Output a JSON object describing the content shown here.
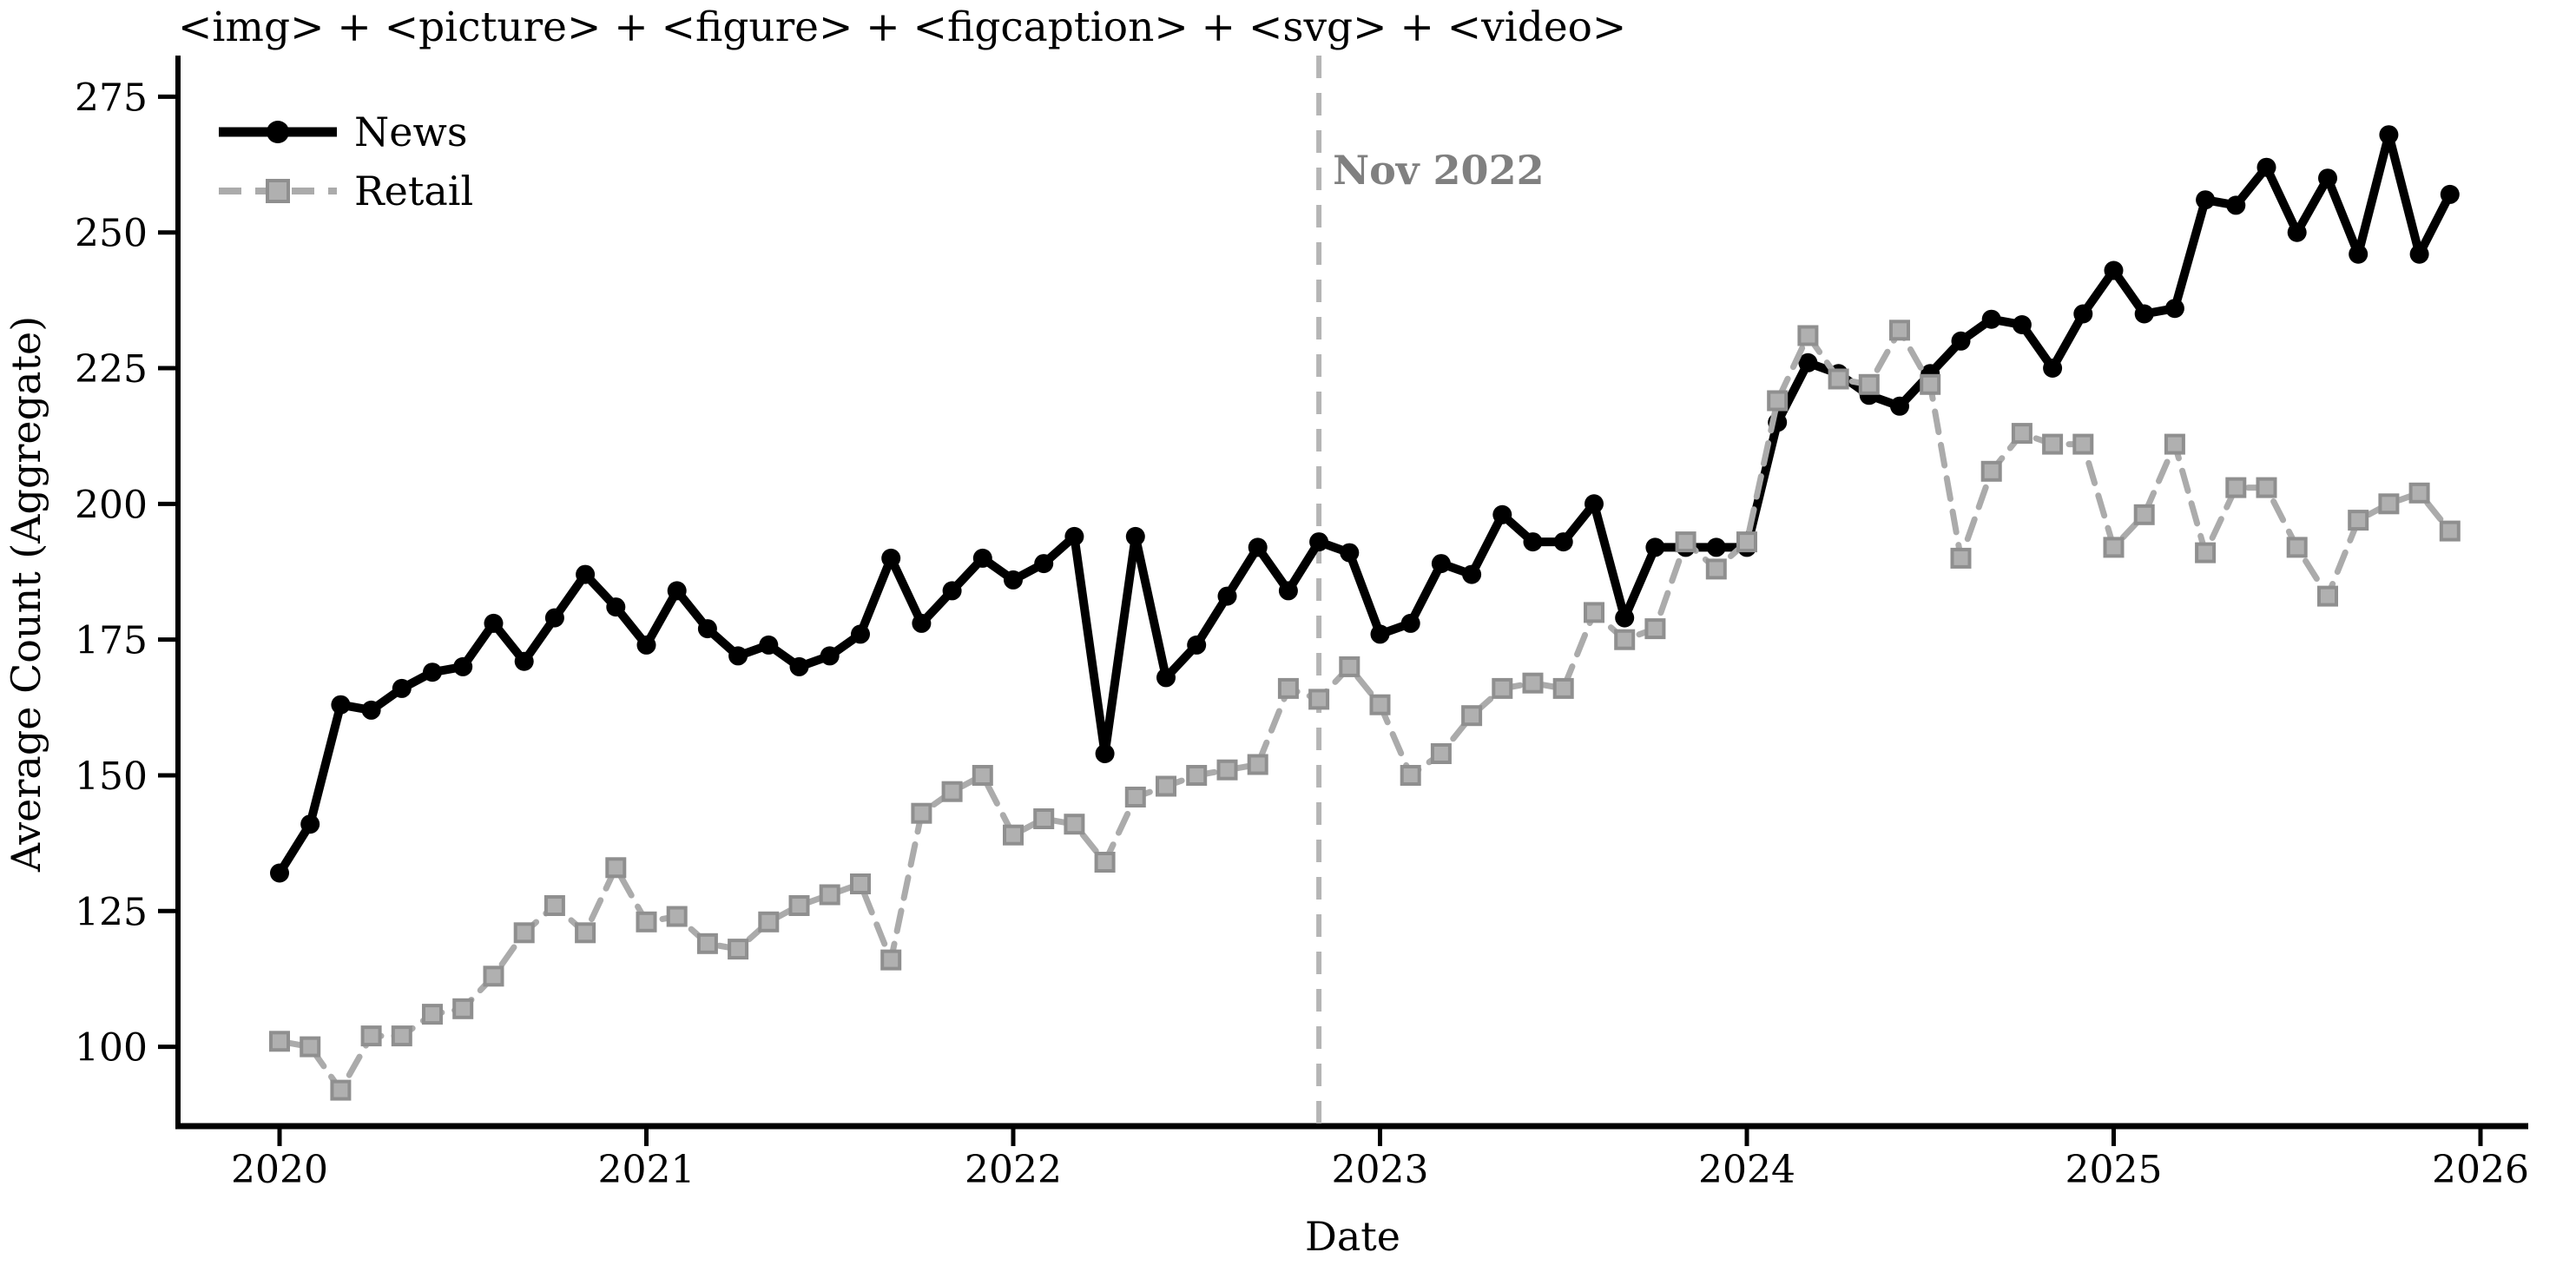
{
  "chart_data": {
    "type": "line",
    "title": "<img> + <picture> + <figure> + <figcaption> + <svg> + <video>",
    "xlabel": "Date",
    "ylabel": "Average Count (Aggregate)",
    "x_start": "2020-01",
    "x_step_months": 1,
    "x_tick_labels": [
      "2020",
      "2021",
      "2022",
      "2023",
      "2024",
      "2025",
      "2026"
    ],
    "y_tick_labels": [
      100,
      125,
      150,
      175,
      200,
      225,
      250,
      275
    ],
    "ylim": [
      85,
      283
    ],
    "grid": false,
    "legend_position": "upper-left",
    "annotation": {
      "label": "Nov 2022",
      "x_month_index": 34,
      "color": "#808080",
      "line_color": "#b5b5b5",
      "line_style": "dashed"
    },
    "series": [
      {
        "name": "News",
        "color": "#000000",
        "marker": "circle",
        "linestyle": "solid",
        "values": [
          132,
          141,
          163,
          162,
          166,
          169,
          170,
          178,
          171,
          179,
          187,
          181,
          174,
          184,
          177,
          172,
          174,
          170,
          172,
          176,
          190,
          178,
          184,
          190,
          186,
          189,
          194,
          154,
          194,
          168,
          174,
          183,
          192,
          184,
          193,
          191,
          176,
          178,
          189,
          187,
          198,
          193,
          193,
          200,
          179,
          192,
          192,
          192,
          192,
          215,
          226,
          224,
          220,
          218,
          224,
          230,
          234,
          233,
          225,
          235,
          243,
          235,
          236,
          256,
          255,
          262,
          250,
          260,
          246,
          268,
          246,
          257
        ]
      },
      {
        "name": "Retail",
        "color": "#ababab",
        "marker": "square",
        "marker_fill": "#b0b0b0",
        "marker_edge": "#8f8f8f",
        "linestyle": "dashed",
        "values": [
          101,
          100,
          92,
          102,
          102,
          106,
          107,
          113,
          121,
          126,
          121,
          133,
          123,
          124,
          119,
          118,
          123,
          126,
          128,
          130,
          116,
          143,
          147,
          150,
          139,
          142,
          141,
          134,
          146,
          148,
          150,
          151,
          152,
          166,
          164,
          170,
          163,
          150,
          154,
          161,
          166,
          167,
          166,
          180,
          175,
          177,
          193,
          188,
          193,
          219,
          231,
          223,
          222,
          232,
          222,
          190,
          206,
          213,
          211,
          211,
          192,
          198,
          211,
          191,
          203,
          203,
          192,
          183,
          197,
          200,
          202,
          195
        ]
      }
    ]
  }
}
